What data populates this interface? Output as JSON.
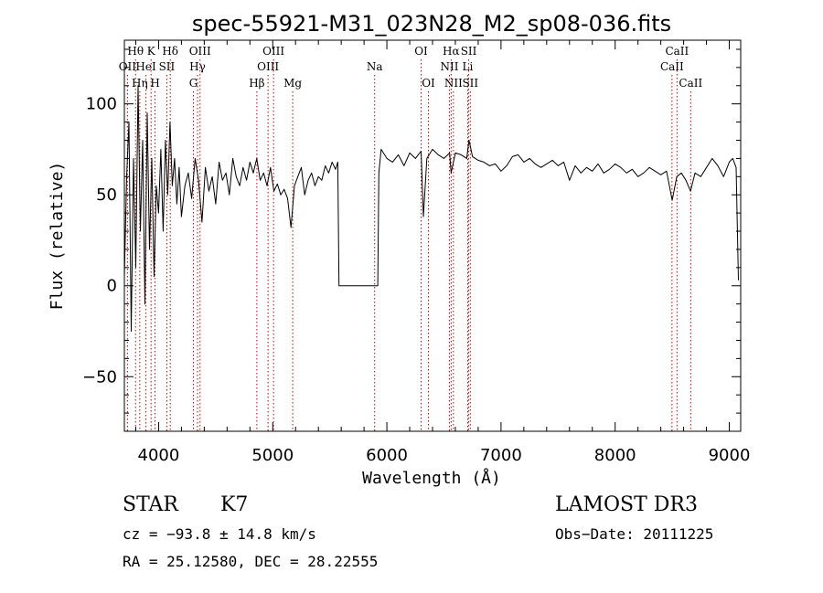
{
  "chart_data": {
    "type": "line",
    "title": "spec-55921-M31_023N28_M2_sp08-036.fits",
    "xlabel": "Wavelength (Å)",
    "ylabel": "Flux (relative)",
    "xlim": [
      3700,
      9100
    ],
    "ylim": [
      -80,
      135
    ],
    "xticks": [
      4000,
      5000,
      6000,
      7000,
      8000,
      9000
    ],
    "yticks": [
      -50,
      0,
      50,
      100
    ],
    "xtick_labels": [
      "4000",
      "5000",
      "6000",
      "7000",
      "8000",
      "9000"
    ],
    "ytick_labels": [
      "−50",
      "0",
      "50",
      "100"
    ],
    "grid": false,
    "line_color": "#000000",
    "marker_color": "#cc0000",
    "series": [
      {
        "x": [
          3700,
          3720,
          3740,
          3760,
          3780,
          3800,
          3820,
          3840,
          3860,
          3880,
          3900,
          3920,
          3940,
          3960,
          3980,
          4000,
          4020,
          4040,
          4060,
          4080,
          4100,
          4120,
          4140,
          4160,
          4180,
          4200,
          4230,
          4260,
          4290,
          4320,
          4350,
          4380,
          4410,
          4440,
          4470,
          4500,
          4530,
          4560,
          4590,
          4620,
          4650,
          4680,
          4710,
          4740,
          4770,
          4800,
          4830,
          4860,
          4890,
          4920,
          4950,
          4980,
          5010,
          5040,
          5070,
          5100,
          5130,
          5160,
          5190,
          5220,
          5250,
          5280,
          5310,
          5340,
          5370,
          5400,
          5430,
          5460,
          5490,
          5520,
          5550,
          5570,
          5580,
          5600,
          5700,
          5800,
          5900,
          5920,
          5930,
          5950,
          6000,
          6050,
          6100,
          6150,
          6200,
          6250,
          6300,
          6320,
          6350,
          6400,
          6450,
          6500,
          6550,
          6563,
          6600,
          6650,
          6700,
          6720,
          6750,
          6800,
          6850,
          6900,
          6950,
          7000,
          7050,
          7100,
          7150,
          7200,
          7250,
          7300,
          7350,
          7400,
          7450,
          7500,
          7550,
          7600,
          7650,
          7700,
          7750,
          7800,
          7850,
          7900,
          7950,
          8000,
          8050,
          8100,
          8150,
          8200,
          8250,
          8300,
          8350,
          8400,
          8450,
          8500,
          8540,
          8580,
          8620,
          8660,
          8700,
          8750,
          8800,
          8850,
          8900,
          8950,
          9000,
          9030,
          9060,
          9080
        ],
        "y": [
          5,
          60,
          90,
          -25,
          70,
          10,
          110,
          30,
          80,
          -10,
          95,
          20,
          70,
          5,
          55,
          40,
          75,
          30,
          80,
          50,
          90,
          55,
          70,
          45,
          65,
          38,
          55,
          62,
          48,
          70,
          58,
          35,
          65,
          52,
          60,
          45,
          68,
          58,
          62,
          50,
          70,
          60,
          55,
          65,
          58,
          68,
          62,
          70,
          58,
          62,
          55,
          65,
          52,
          56,
          50,
          53,
          48,
          32,
          55,
          60,
          65,
          50,
          58,
          62,
          55,
          60,
          58,
          66,
          62,
          68,
          64,
          68,
          0,
          0,
          0,
          0,
          0,
          0,
          62,
          75,
          70,
          68,
          72,
          66,
          73,
          70,
          74,
          38,
          70,
          75,
          72,
          70,
          73,
          62,
          73,
          72,
          70,
          80,
          71,
          69,
          68,
          66,
          67,
          63,
          66,
          71,
          72,
          68,
          70,
          67,
          65,
          67,
          69,
          66,
          68,
          58,
          66,
          62,
          65,
          63,
          67,
          62,
          64,
          67,
          65,
          62,
          64,
          60,
          62,
          65,
          63,
          61,
          63,
          47,
          60,
          62,
          58,
          52,
          62,
          60,
          65,
          70,
          66,
          60,
          68,
          70,
          65,
          3
        ]
      }
    ],
    "lines": [
      {
        "name": "OII",
        "wavelength": 3727,
        "row": 1
      },
      {
        "name": "Hθ",
        "wavelength": 3798,
        "row": 0
      },
      {
        "name": "Hη",
        "wavelength": 3835,
        "row": 2
      },
      {
        "name": "K",
        "wavelength": 3934,
        "row": 0
      },
      {
        "name": "HeI",
        "wavelength": 3889,
        "row": 1
      },
      {
        "name": "H",
        "wavelength": 3969,
        "row": 2
      },
      {
        "name": "SII",
        "wavelength": 4072,
        "row": 1
      },
      {
        "name": "Hδ",
        "wavelength": 4102,
        "row": 0
      },
      {
        "name": "G",
        "wavelength": 4305,
        "row": 2
      },
      {
        "name": "OIII",
        "wavelength": 4363,
        "row": 0
      },
      {
        "name": "Hγ",
        "wavelength": 4341,
        "row": 1
      },
      {
        "name": "Hβ",
        "wavelength": 4861,
        "row": 2
      },
      {
        "name": "OIII",
        "wavelength": 4959,
        "row": 1
      },
      {
        "name": "OIII",
        "wavelength": 5007,
        "row": 0
      },
      {
        "name": "Mg",
        "wavelength": 5175,
        "row": 2
      },
      {
        "name": "Na",
        "wavelength": 5893,
        "row": 1
      },
      {
        "name": "OI",
        "wavelength": 6300,
        "row": 0
      },
      {
        "name": "OI",
        "wavelength": 6364,
        "row": 2
      },
      {
        "name": "Hα",
        "wavelength": 6563,
        "row": 0
      },
      {
        "name": "NII",
        "wavelength": 6548,
        "row": 1
      },
      {
        "name": "NII",
        "wavelength": 6583,
        "row": 2
      },
      {
        "name": "SII",
        "wavelength": 6717,
        "row": 0
      },
      {
        "name": "Li",
        "wavelength": 6708,
        "row": 1
      },
      {
        "name": "SII",
        "wavelength": 6731,
        "row": 2
      },
      {
        "name": "CaII",
        "wavelength": 8498,
        "row": 1
      },
      {
        "name": "CaII",
        "wavelength": 8542,
        "row": 0
      },
      {
        "name": "CaII",
        "wavelength": 8662,
        "row": 2
      }
    ]
  },
  "info": {
    "class": "STAR",
    "subclass": "K7",
    "survey": "LAMOST DR3",
    "cz": "cz = −93.8 ± 14.8 km/s",
    "obs_date": "Obs−Date: 20111225",
    "coords": "RA =  25.12580, DEC =  28.22555"
  }
}
